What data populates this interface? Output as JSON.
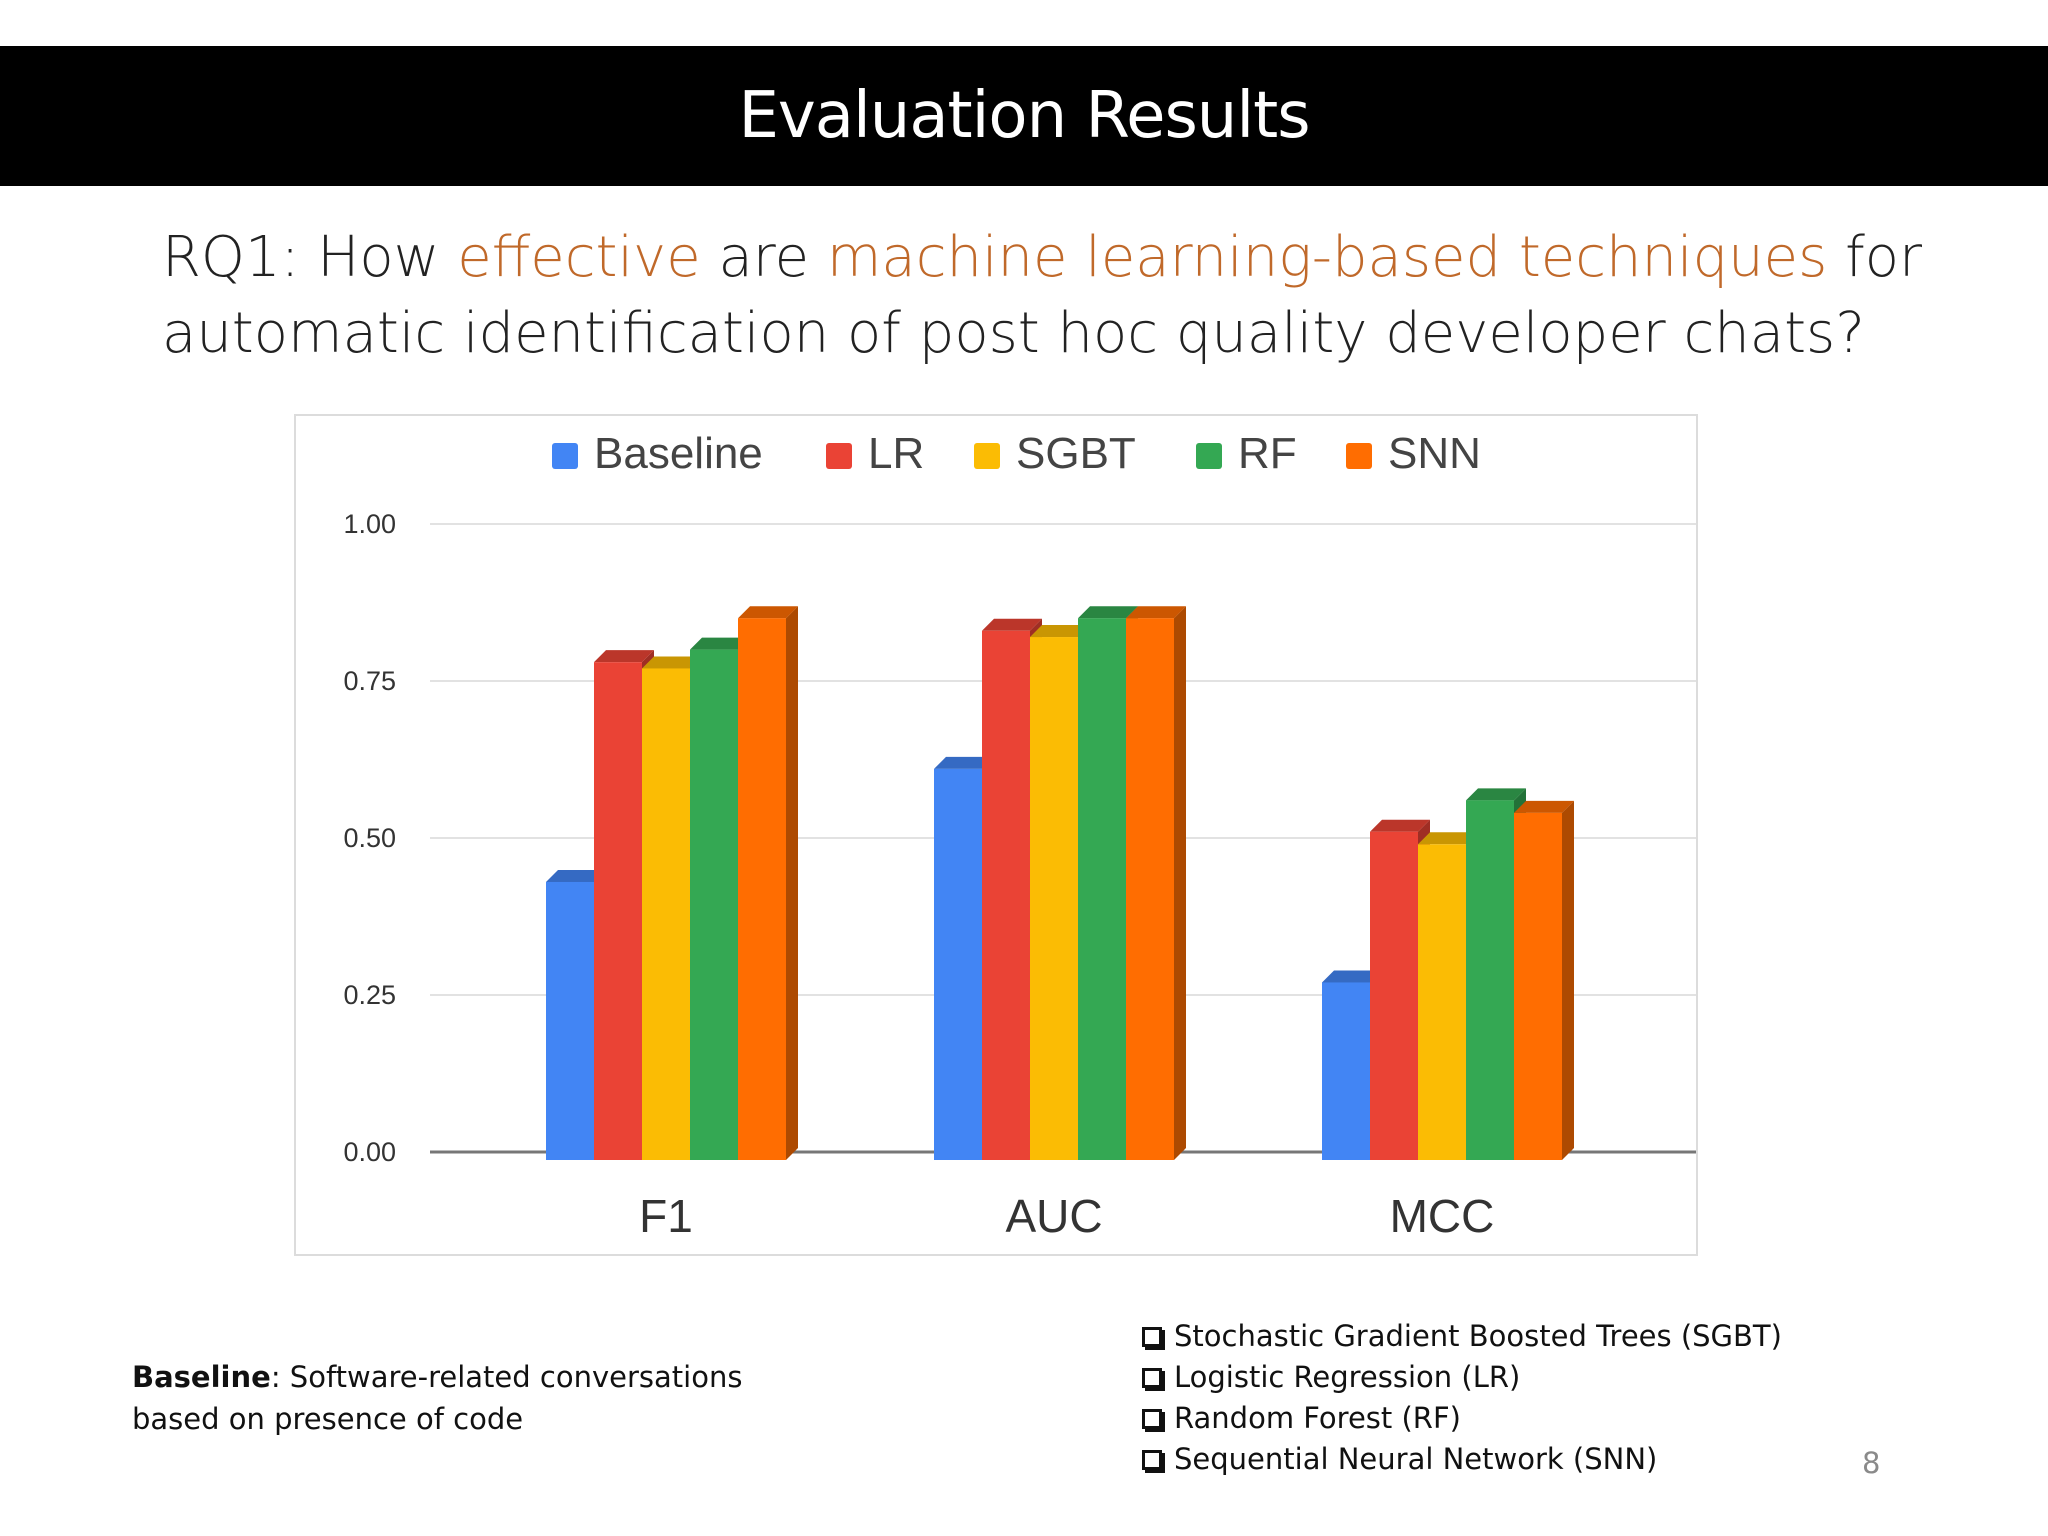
{
  "slide": {
    "title": "Evaluation Results",
    "question": {
      "p1": "RQ1: How ",
      "h1": "effective",
      "p2": " are ",
      "h2": "machine learning-based techniques",
      "p3": " for automatic identification of post hoc quality developer chats?"
    },
    "baseline_note": {
      "term": "Baseline",
      "text": ": Software-related conversations based on presence of code"
    },
    "methods": [
      "Stochastic Gradient Boosted Trees (SGBT)",
      "Logistic Regression (LR)",
      "Random Forest (RF)",
      "Sequential Neural Network (SNN)"
    ],
    "page_number": "8",
    "accent_color": "#c0692a"
  },
  "chart_data": {
    "type": "bar",
    "categories": [
      "F1",
      "AUC",
      "MCC"
    ],
    "series": [
      {
        "name": "Baseline",
        "color": "#4285f4",
        "values": [
          0.43,
          0.61,
          0.27
        ]
      },
      {
        "name": "LR",
        "color": "#ea4335",
        "values": [
          0.78,
          0.83,
          0.51
        ]
      },
      {
        "name": "SGBT",
        "color": "#fbbc04",
        "values": [
          0.77,
          0.82,
          0.49
        ]
      },
      {
        "name": "RF",
        "color": "#34a853",
        "values": [
          0.8,
          0.85,
          0.56
        ]
      },
      {
        "name": "SNN",
        "color": "#ff6d01",
        "values": [
          0.85,
          0.85,
          0.54
        ]
      }
    ],
    "ylim": [
      0,
      1
    ],
    "yticks": [
      "0.00",
      "0.25",
      "0.50",
      "0.75",
      "1.00"
    ],
    "grid": true,
    "legend": "top"
  }
}
